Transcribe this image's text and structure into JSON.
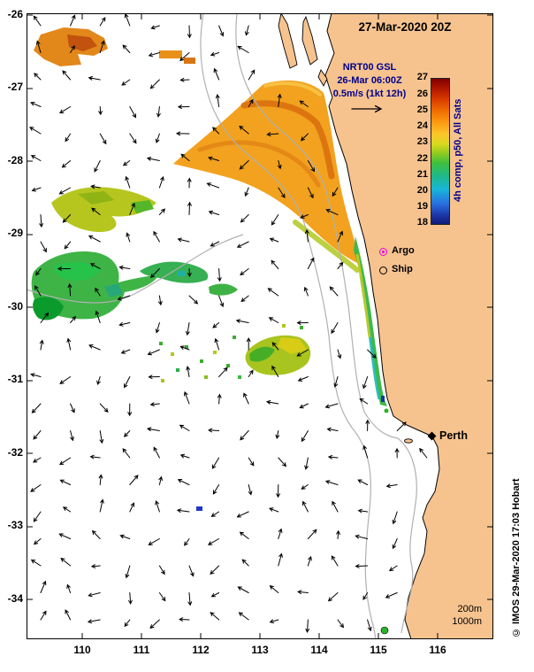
{
  "title": "27-Mar-2020 20Z",
  "annotation": {
    "line1": "NRT00 GSL",
    "line2": "26-Mar 06:00Z",
    "line3": "0.5m/s (1kt 12h)"
  },
  "colorbar": {
    "label": "4h comp, p50, All Sats",
    "ticks": [
      "27",
      "26",
      "25",
      "24",
      "23",
      "22",
      "21",
      "20",
      "19",
      "18"
    ],
    "top_color": "#7e0000",
    "bottom_color": "#131c7a"
  },
  "legend": {
    "argo_label": "Argo",
    "ship_label": "Ship",
    "argo_color": "#e800e8",
    "ship_color": "#000000"
  },
  "city_label": "Perth",
  "depth_labels": {
    "d200": "200m",
    "d1000": "1000m"
  },
  "credit": "© IMOS 29-Mar-2020 17:03 Hobart",
  "axes": {
    "x_ticks": [
      "110",
      "111",
      "112",
      "113",
      "114",
      "115",
      "116"
    ],
    "y_ticks": [
      "-26",
      "-27",
      "-28",
      "-29",
      "-30",
      "-31",
      "-32",
      "-33",
      "-34"
    ]
  },
  "colors": {
    "land": "#f6c38f",
    "contour": "#b0b0b0",
    "vector": "#000000"
  },
  "chart_data": {
    "type": "heatmap",
    "title": "27-Mar-2020 20Z",
    "x_axis": {
      "ticks": [
        110,
        111,
        112,
        113,
        114,
        115,
        116
      ],
      "range": [
        109.1,
        116.9
      ]
    },
    "y_axis": {
      "ticks": [
        -26,
        -27,
        -28,
        -29,
        -30,
        -31,
        -32,
        -33,
        -34
      ],
      "range": [
        -34.55,
        -26.0
      ]
    },
    "colorbar": {
      "min": 18,
      "max": 27,
      "label": "4h comp, p50, All Sats"
    },
    "overlays": [
      "sea surface temperature patches",
      "surface current vector field",
      "isobath contours 200m and 1000m",
      "coastline of Western Australia"
    ],
    "markers": [
      {
        "name": "Perth",
        "lon": 115.9,
        "lat": -31.95
      }
    ],
    "legend_points": [
      "Argo",
      "Ship"
    ]
  }
}
